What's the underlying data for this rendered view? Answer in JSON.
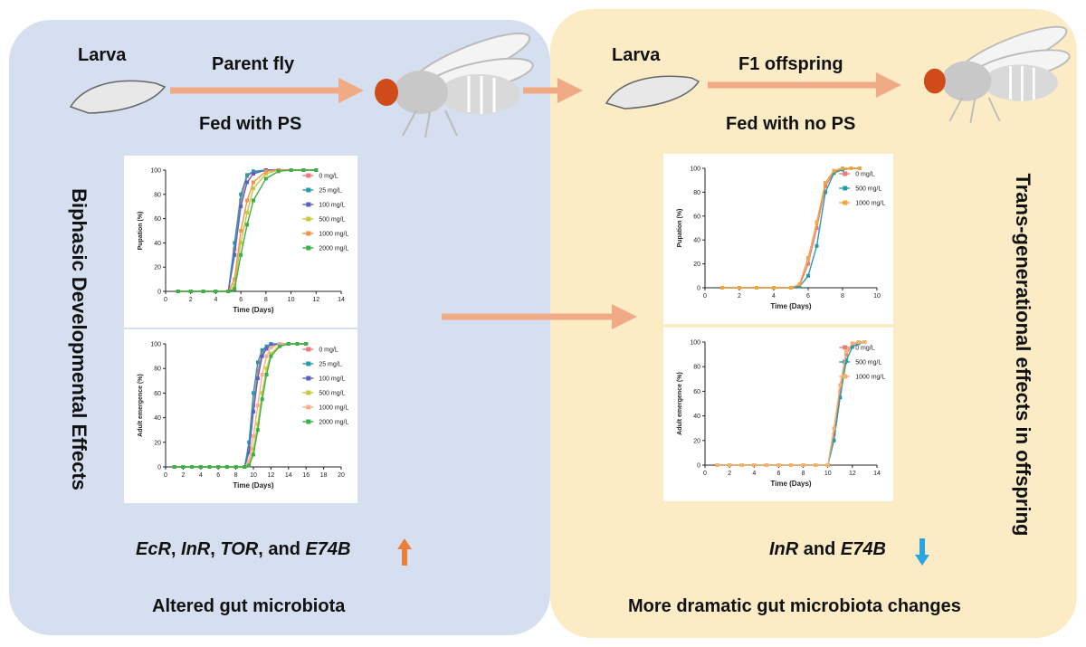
{
  "parent": {
    "larva_label": "Larva",
    "arrow_label": "Parent fly",
    "feed_label": "Fed with PS",
    "side_label": "Biphasic Developmental Effects",
    "genes": [
      "EcR",
      "InR",
      "TOR",
      "E74B"
    ],
    "gene_seps": [
      ", ",
      ", ",
      ", and "
    ],
    "gene_trend": "up",
    "gene_trend_color": "#e9803a",
    "microbiota": "Altered gut microbiota",
    "panel_color": "#d6dff0"
  },
  "offspring": {
    "larva_label": "Larva",
    "arrow_label": "F1 offspring",
    "feed_label": "Fed with no PS",
    "side_label": "Trans-generational effects in offspring",
    "genes": [
      "InR",
      "E74B"
    ],
    "gene_seps": [
      " and "
    ],
    "gene_trend": "down",
    "gene_trend_color": "#2aa6de",
    "microbiota": "More dramatic gut microbiota changes",
    "panel_color": "#fbecc5"
  },
  "arrow_color": "#f0ab86",
  "chart_data": [
    {
      "type": "line",
      "xlabel": "Time (Days)",
      "ylabel": "Pupation (%)",
      "xlim": [
        0,
        14
      ],
      "ylim": [
        0,
        100
      ],
      "xticks": [
        0,
        2,
        4,
        6,
        8,
        10,
        12,
        14
      ],
      "yticks": [
        0,
        20,
        40,
        60,
        80,
        100
      ],
      "legend_position": "right",
      "series": [
        {
          "name": "0 mg/L",
          "color": "#e97b7b",
          "x": [
            1,
            2,
            3,
            4,
            5,
            5.5,
            6,
            6.5,
            7,
            8,
            9,
            10,
            11,
            12
          ],
          "y": [
            0,
            0,
            0,
            0,
            0,
            35,
            75,
            95,
            98,
            100,
            100,
            100,
            100,
            100
          ]
        },
        {
          "name": "25 mg/L",
          "color": "#2a9aa8",
          "x": [
            1,
            2,
            3,
            4,
            5,
            5.5,
            6,
            6.5,
            7,
            8,
            9,
            10,
            11,
            12
          ],
          "y": [
            0,
            0,
            0,
            0,
            0,
            40,
            80,
            96,
            99,
            100,
            100,
            100,
            100,
            100
          ]
        },
        {
          "name": "100 mg/L",
          "color": "#5b5fc7",
          "x": [
            1,
            2,
            3,
            4,
            5,
            5.5,
            6,
            6.5,
            7,
            8,
            9,
            10,
            11,
            12
          ],
          "y": [
            0,
            0,
            0,
            0,
            0,
            30,
            70,
            90,
            97,
            100,
            100,
            100,
            100,
            100
          ]
        },
        {
          "name": "500 mg/L",
          "color": "#c9c83a",
          "x": [
            1,
            2,
            3,
            4,
            5,
            5.5,
            6,
            6.5,
            7,
            8,
            9,
            10,
            11,
            12
          ],
          "y": [
            0,
            0,
            0,
            0,
            0,
            5,
            40,
            65,
            85,
            97,
            100,
            100,
            100,
            100
          ]
        },
        {
          "name": "1000 mg/L",
          "color": "#f0954a",
          "x": [
            1,
            2,
            3,
            4,
            5,
            5.5,
            6,
            6.5,
            7,
            8,
            9,
            10,
            11,
            12
          ],
          "y": [
            0,
            0,
            0,
            0,
            0,
            10,
            50,
            75,
            90,
            99,
            100,
            100,
            100,
            100
          ]
        },
        {
          "name": "2000 mg/L",
          "color": "#3bb04a",
          "x": [
            1,
            2,
            3,
            4,
            5,
            5.5,
            6,
            6.5,
            7,
            8,
            9,
            10,
            11,
            12
          ],
          "y": [
            0,
            0,
            0,
            0,
            0,
            2,
            30,
            55,
            75,
            93,
            99,
            100,
            100,
            100
          ]
        }
      ]
    },
    {
      "type": "line",
      "xlabel": "Time (Days)",
      "ylabel": "Adult emergence (%)",
      "xlim": [
        0,
        20
      ],
      "ylim": [
        0,
        100
      ],
      "xticks": [
        0,
        2,
        4,
        6,
        8,
        10,
        12,
        14,
        16,
        18,
        20
      ],
      "yticks": [
        0,
        20,
        40,
        60,
        80,
        100
      ],
      "legend_position": "right",
      "series": [
        {
          "name": "0 mg/L",
          "color": "#e97b7b",
          "x": [
            1,
            2,
            3,
            4,
            5,
            6,
            7,
            8,
            9,
            9.5,
            10,
            10.5,
            11,
            11.5,
            12,
            13,
            14,
            15,
            16
          ],
          "y": [
            0,
            0,
            0,
            0,
            0,
            0,
            0,
            0,
            0,
            15,
            50,
            78,
            93,
            97,
            99,
            100,
            100,
            100,
            100
          ]
        },
        {
          "name": "25 mg/L",
          "color": "#2a9aa8",
          "x": [
            1,
            2,
            3,
            4,
            5,
            6,
            7,
            8,
            9,
            9.5,
            10,
            10.5,
            11,
            11.5,
            12,
            13,
            14,
            15,
            16
          ],
          "y": [
            0,
            0,
            0,
            0,
            0,
            0,
            0,
            0,
            0,
            20,
            60,
            85,
            95,
            98,
            100,
            100,
            100,
            100,
            100
          ]
        },
        {
          "name": "100 mg/L",
          "color": "#5b5fc7",
          "x": [
            1,
            2,
            3,
            4,
            5,
            6,
            7,
            8,
            9,
            9.5,
            10,
            10.5,
            11,
            11.5,
            12,
            13,
            14,
            15,
            16
          ],
          "y": [
            0,
            0,
            0,
            0,
            0,
            0,
            0,
            0,
            0,
            12,
            45,
            72,
            90,
            96,
            99,
            100,
            100,
            100,
            100
          ]
        },
        {
          "name": "500 mg/L",
          "color": "#c9c83a",
          "x": [
            1,
            2,
            3,
            4,
            5,
            6,
            7,
            8,
            9,
            9.5,
            10,
            10.5,
            11,
            11.5,
            12,
            13,
            14,
            15,
            16
          ],
          "y": [
            0,
            0,
            0,
            0,
            0,
            0,
            0,
            0,
            0,
            2,
            15,
            35,
            60,
            80,
            92,
            99,
            100,
            100,
            100
          ]
        },
        {
          "name": "1000 mg/L",
          "color": "#f7b089",
          "x": [
            1,
            2,
            3,
            4,
            5,
            6,
            7,
            8,
            9,
            9.5,
            10,
            10.5,
            11,
            11.5,
            12,
            13,
            14,
            15,
            16
          ],
          "y": [
            0,
            0,
            0,
            0,
            0,
            0,
            0,
            0,
            0,
            5,
            25,
            50,
            75,
            90,
            97,
            100,
            100,
            100,
            100
          ]
        },
        {
          "name": "2000 mg/L",
          "color": "#3bb04a",
          "x": [
            1,
            2,
            3,
            4,
            5,
            6,
            7,
            8,
            9,
            9.5,
            10,
            10.5,
            11,
            11.5,
            12,
            13,
            14,
            15,
            16
          ],
          "y": [
            0,
            0,
            0,
            0,
            0,
            0,
            0,
            0,
            0,
            1,
            10,
            30,
            55,
            75,
            90,
            98,
            100,
            100,
            100
          ]
        }
      ]
    },
    {
      "type": "line",
      "xlabel": "Time (Days)",
      "ylabel": "Pupation (%)",
      "xlim": [
        0,
        10
      ],
      "ylim": [
        0,
        100
      ],
      "xticks": [
        0,
        2,
        4,
        6,
        8,
        10
      ],
      "yticks": [
        0,
        20,
        40,
        60,
        80,
        100
      ],
      "legend_position": "right",
      "series": [
        {
          "name": "0 mg/L",
          "color": "#e97b7b",
          "x": [
            1,
            2,
            3,
            4,
            5,
            5.5,
            6,
            6.5,
            7,
            7.5,
            8,
            8.5,
            9
          ],
          "y": [
            0,
            0,
            0,
            0,
            0,
            2,
            20,
            50,
            85,
            97,
            99,
            100,
            100
          ]
        },
        {
          "name": "500 mg/L",
          "color": "#2a9aa8",
          "x": [
            1,
            2,
            3,
            4,
            5,
            5.5,
            6,
            6.5,
            7,
            7.5,
            8,
            8.5,
            9
          ],
          "y": [
            0,
            0,
            0,
            0,
            0,
            1,
            10,
            35,
            80,
            96,
            99,
            100,
            100
          ]
        },
        {
          "name": "1000 mg/L",
          "color": "#f4a53e",
          "x": [
            1,
            2,
            3,
            4,
            5,
            5.5,
            6,
            6.5,
            7,
            7.5,
            8,
            8.5,
            9
          ],
          "y": [
            0,
            0,
            0,
            0,
            0,
            3,
            25,
            55,
            88,
            98,
            100,
            100,
            100
          ]
        }
      ]
    },
    {
      "type": "line",
      "xlabel": "Time (Days)",
      "ylabel": "Adult emergence (%)",
      "xlim": [
        0,
        14
      ],
      "ylim": [
        0,
        100
      ],
      "xticks": [
        0,
        2,
        4,
        6,
        8,
        10,
        12,
        14
      ],
      "yticks": [
        0,
        20,
        40,
        60,
        80,
        100
      ],
      "legend_position": "right",
      "series": [
        {
          "name": "0 mg/L",
          "color": "#e97b7b",
          "x": [
            1,
            2,
            3,
            4,
            5,
            6,
            7,
            8,
            9,
            10,
            10.5,
            11,
            11.5,
            12,
            12.5,
            13
          ],
          "y": [
            0,
            0,
            0,
            0,
            0,
            0,
            0,
            0,
            0,
            0,
            25,
            60,
            90,
            98,
            100,
            100
          ]
        },
        {
          "name": "500 mg/L",
          "color": "#2a9aa8",
          "x": [
            1,
            2,
            3,
            4,
            5,
            6,
            7,
            8,
            9,
            10,
            10.5,
            11,
            11.5,
            12,
            12.5,
            13
          ],
          "y": [
            0,
            0,
            0,
            0,
            0,
            0,
            0,
            0,
            0,
            0,
            20,
            55,
            85,
            96,
            99,
            100
          ]
        },
        {
          "name": "1000 mg/L",
          "color": "#f7b16a",
          "x": [
            1,
            2,
            3,
            4,
            5,
            6,
            7,
            8,
            9,
            10,
            10.5,
            11,
            11.5,
            12,
            12.5,
            13
          ],
          "y": [
            0,
            0,
            0,
            0,
            0,
            0,
            0,
            0,
            0,
            0,
            30,
            65,
            92,
            99,
            100,
            100
          ]
        }
      ]
    }
  ]
}
